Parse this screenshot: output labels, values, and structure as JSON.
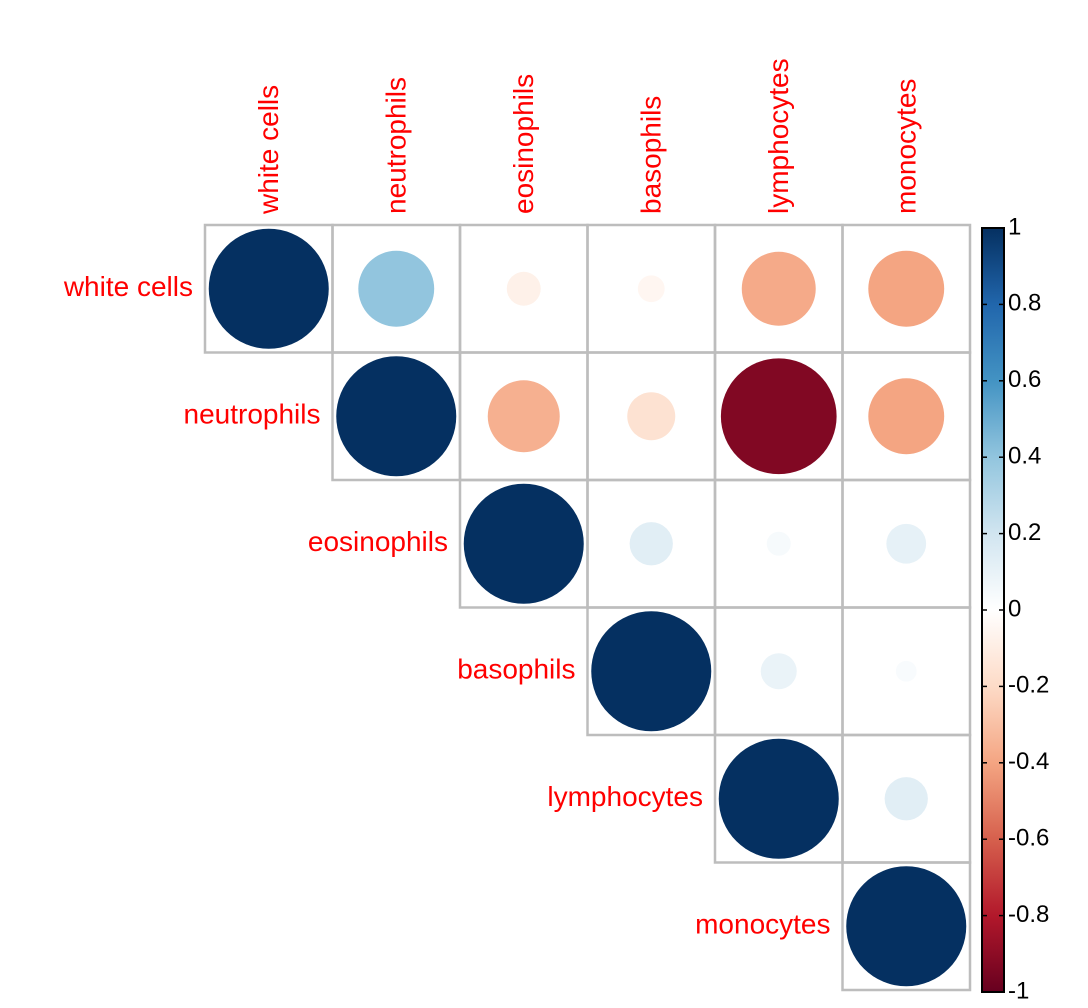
{
  "chart_data": {
    "type": "corrplot",
    "labels": [
      "white cells",
      "neutrophils",
      "eosinophils",
      "basophils",
      "lymphocytes",
      "monocytes"
    ],
    "matrix": [
      [
        1,
        0.4,
        -0.08,
        -0.05,
        -0.38,
        -0.4
      ],
      [
        null,
        1,
        -0.36,
        -0.16,
        -0.93,
        -0.4
      ],
      [
        null,
        null,
        1,
        0.13,
        0.04,
        0.11
      ],
      [
        null,
        null,
        null,
        1,
        0.09,
        0.03
      ],
      [
        null,
        null,
        null,
        null,
        1,
        0.13
      ],
      [
        null,
        null,
        null,
        null,
        null,
        1
      ]
    ],
    "colorscale": [
      "#67001f",
      "#b2182b",
      "#d6604d",
      "#f4a582",
      "#fddbc7",
      "#ffffff",
      "#d1e5f0",
      "#92c5de",
      "#4393c3",
      "#2166ac",
      "#053061"
    ],
    "clim": [
      -1,
      1
    ],
    "cticks": [
      1,
      0.8,
      0.6,
      0.4,
      0.2,
      0,
      -0.2,
      -0.4,
      -0.6,
      -0.8,
      -1
    ],
    "label_color": "#ff0000"
  }
}
